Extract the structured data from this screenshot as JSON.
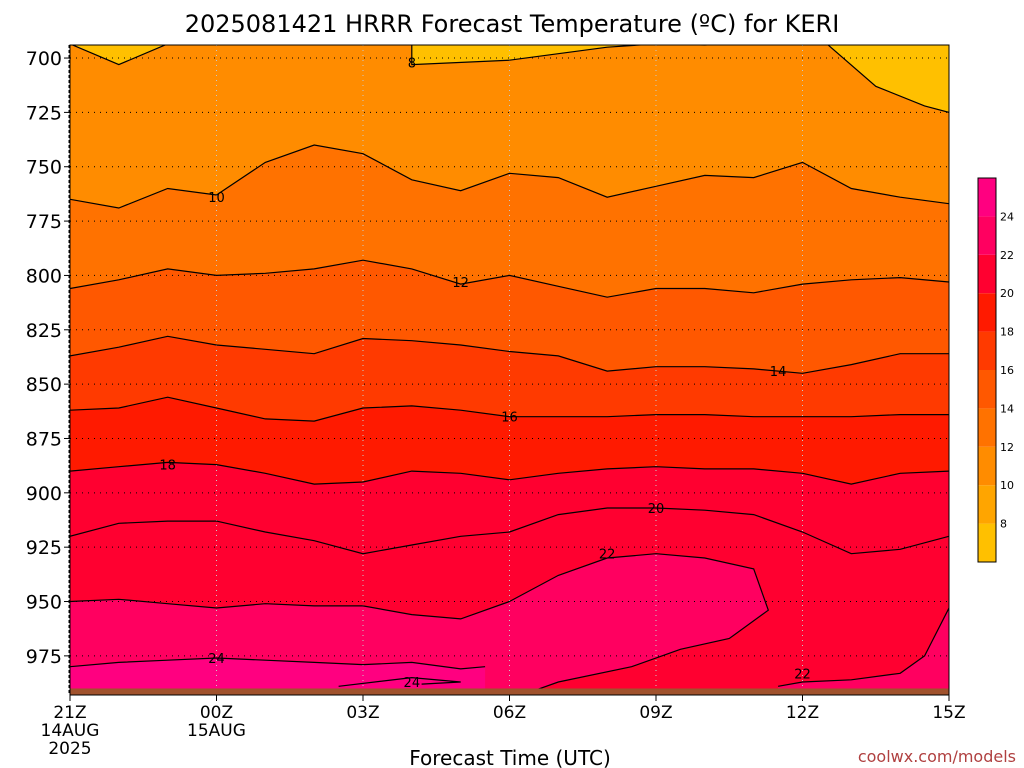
{
  "chart_data": {
    "type": "heatmap",
    "title": "2025081421 HRRR Forecast Temperature (ºC) for KERI",
    "xlabel": "Forecast Time (UTC)",
    "ylabel": "",
    "credit": "coolwx.com/models",
    "x_ticks": [
      {
        "hour": 0,
        "line1": "21Z",
        "line2": "14AUG",
        "line3": "2025"
      },
      {
        "hour": 3,
        "line1": "00Z",
        "line2": "15AUG",
        "line3": ""
      },
      {
        "hour": 6,
        "line1": "03Z",
        "line2": "",
        "line3": ""
      },
      {
        "hour": 9,
        "line1": "06Z",
        "line2": "",
        "line3": ""
      },
      {
        "hour": 12,
        "line1": "09Z",
        "line2": "",
        "line3": ""
      },
      {
        "hour": 15,
        "line1": "12Z",
        "line2": "",
        "line3": ""
      },
      {
        "hour": 18,
        "line1": "15Z",
        "line2": "",
        "line3": ""
      }
    ],
    "xlim": [
      0,
      18
    ],
    "y_ticks": [
      700,
      725,
      750,
      775,
      800,
      825,
      850,
      875,
      900,
      925,
      950,
      975
    ],
    "ylim": [
      694,
      993
    ],
    "y_unit": "hPa",
    "colorbar": {
      "levels": [
        8,
        10,
        12,
        14,
        16,
        18,
        20,
        22,
        24
      ],
      "colors": [
        "#ffc000",
        "#ffa500",
        "#ff8c00",
        "#ff7200",
        "#ff5800",
        "#ff3a00",
        "#ff1a00",
        "#ff0030",
        "#ff0060",
        "#ff0080"
      ]
    },
    "contours": [
      {
        "label_text": "8",
        "label_hour": 7,
        "label_p": 702,
        "points": [
          [
            0,
            693.5
          ],
          [
            1,
            703
          ],
          [
            2,
            693.5
          ],
          [
            7,
            693.5
          ],
          [
            7,
            703
          ],
          [
            9,
            701
          ],
          [
            10,
            698
          ],
          [
            11,
            695
          ],
          [
            12,
            693.5
          ],
          [
            13,
            694
          ],
          [
            13.5,
            693.5
          ],
          [
            15.5,
            693.5
          ],
          [
            16.5,
            713
          ],
          [
            17.5,
            722
          ],
          [
            18,
            725
          ]
        ]
      },
      {
        "label_text": "10",
        "label_hour": 3,
        "label_p": 764,
        "points": [
          [
            0,
            765
          ],
          [
            1,
            769
          ],
          [
            2,
            760
          ],
          [
            3,
            763
          ],
          [
            4,
            748
          ],
          [
            5,
            740
          ],
          [
            6,
            744
          ],
          [
            7,
            756
          ],
          [
            8,
            761
          ],
          [
            9,
            753
          ],
          [
            10,
            755
          ],
          [
            11,
            764
          ],
          [
            12,
            759
          ],
          [
            13,
            754
          ],
          [
            14,
            755
          ],
          [
            15,
            748
          ],
          [
            16,
            760
          ],
          [
            17,
            764
          ],
          [
            18,
            767
          ]
        ]
      },
      {
        "label_text": "12",
        "label_hour": 8,
        "label_p": 803,
        "points": [
          [
            0,
            806
          ],
          [
            1,
            802
          ],
          [
            2,
            797
          ],
          [
            3,
            800
          ],
          [
            4,
            799
          ],
          [
            5,
            797
          ],
          [
            6,
            793
          ],
          [
            7,
            797
          ],
          [
            8,
            804
          ],
          [
            9,
            800
          ],
          [
            10,
            805
          ],
          [
            11,
            810
          ],
          [
            12,
            806
          ],
          [
            13,
            806
          ],
          [
            14,
            808
          ],
          [
            15,
            804
          ],
          [
            16,
            802
          ],
          [
            17,
            801
          ],
          [
            18,
            803
          ]
        ]
      },
      {
        "label_text": "14",
        "label_hour": 14.5,
        "label_p": 844,
        "points": [
          [
            0,
            837
          ],
          [
            1,
            833
          ],
          [
            2,
            828
          ],
          [
            3,
            832
          ],
          [
            4,
            834
          ],
          [
            5,
            836
          ],
          [
            6,
            829
          ],
          [
            7,
            830
          ],
          [
            8,
            832
          ],
          [
            9,
            835
          ],
          [
            10,
            837
          ],
          [
            11,
            844
          ],
          [
            12,
            842
          ],
          [
            13,
            842
          ],
          [
            14,
            843
          ],
          [
            15,
            845
          ],
          [
            16,
            841
          ],
          [
            17,
            836
          ],
          [
            18,
            836
          ]
        ]
      },
      {
        "label_text": "16",
        "label_hour": 9,
        "label_p": 865,
        "points": [
          [
            0,
            862
          ],
          [
            1,
            861
          ],
          [
            2,
            856
          ],
          [
            3,
            861
          ],
          [
            4,
            866
          ],
          [
            5,
            867
          ],
          [
            6,
            861
          ],
          [
            7,
            860
          ],
          [
            8,
            862
          ],
          [
            9,
            865
          ],
          [
            10,
            865
          ],
          [
            11,
            865
          ],
          [
            12,
            864
          ],
          [
            13,
            864
          ],
          [
            14,
            865
          ],
          [
            15,
            865
          ],
          [
            16,
            865
          ],
          [
            17,
            864
          ],
          [
            18,
            864
          ]
        ]
      },
      {
        "label_text": "18",
        "label_hour": 2,
        "label_p": 887,
        "points": [
          [
            0,
            890
          ],
          [
            1,
            888
          ],
          [
            2,
            886
          ],
          [
            3,
            887
          ],
          [
            4,
            891
          ],
          [
            5,
            896
          ],
          [
            6,
            895
          ],
          [
            7,
            890
          ],
          [
            8,
            891
          ],
          [
            9,
            894
          ],
          [
            10,
            891
          ],
          [
            11,
            889
          ],
          [
            12,
            888
          ],
          [
            13,
            889
          ],
          [
            14,
            889
          ],
          [
            15,
            891
          ],
          [
            16,
            896
          ],
          [
            17,
            891
          ],
          [
            18,
            890
          ]
        ]
      },
      {
        "label_text": "20",
        "label_hour": 12,
        "label_p": 907,
        "points": [
          [
            0,
            920
          ],
          [
            1,
            914
          ],
          [
            2,
            913
          ],
          [
            3,
            913
          ],
          [
            4,
            918
          ],
          [
            5,
            922
          ],
          [
            6,
            928
          ],
          [
            7,
            924
          ],
          [
            8,
            920
          ],
          [
            9,
            918
          ],
          [
            10,
            910
          ],
          [
            11,
            907
          ],
          [
            12,
            907
          ],
          [
            13,
            908
          ],
          [
            14,
            910
          ],
          [
            15,
            918
          ],
          [
            16,
            928
          ],
          [
            17,
            926
          ],
          [
            18,
            920
          ]
        ]
      },
      {
        "label_text": "22",
        "label_hour": 11,
        "label_p": 928,
        "points": [
          [
            0,
            950
          ],
          [
            1,
            949
          ],
          [
            2,
            951
          ],
          [
            3,
            953
          ],
          [
            4,
            951
          ],
          [
            5,
            952
          ],
          [
            6,
            952
          ],
          [
            7,
            956
          ],
          [
            8,
            958
          ],
          [
            9,
            950
          ],
          [
            10,
            938
          ],
          [
            11,
            930
          ],
          [
            12,
            928
          ],
          [
            13,
            930
          ],
          [
            14,
            935
          ],
          [
            14.3,
            954
          ],
          [
            13.5,
            967
          ],
          [
            12.5,
            972
          ],
          [
            11.5,
            980
          ],
          [
            10,
            987
          ],
          [
            9.5,
            991
          ]
        ]
      },
      {
        "label_text": "22",
        "label_hour": 15,
        "label_p": 983,
        "points": [
          [
            14.5,
            989
          ],
          [
            15,
            987
          ],
          [
            16,
            986
          ],
          [
            17,
            983
          ],
          [
            17.5,
            975
          ],
          [
            18,
            953
          ]
        ]
      },
      {
        "label_text": "24",
        "label_hour": 3,
        "label_p": 976,
        "points": [
          [
            0,
            980
          ],
          [
            1,
            978
          ],
          [
            2,
            977
          ],
          [
            3,
            976
          ],
          [
            4,
            977
          ],
          [
            5,
            978
          ],
          [
            6,
            979
          ],
          [
            7,
            978
          ],
          [
            8,
            981
          ],
          [
            8.5,
            980
          ]
        ]
      },
      {
        "label_text": "24",
        "label_hour": 7,
        "label_p": 987,
        "points": [
          [
            5.5,
            989
          ],
          [
            7,
            985
          ],
          [
            8,
            987
          ],
          [
            7.2,
            988
          ]
        ]
      }
    ],
    "surface_hpa": 990
  }
}
